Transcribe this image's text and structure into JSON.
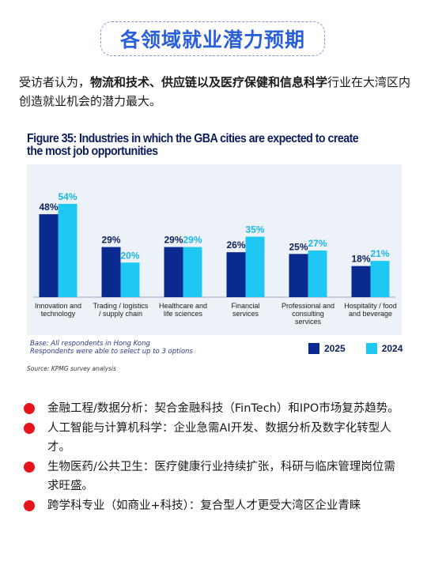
{
  "header": {
    "title": "各领域就业潜力预期"
  },
  "intro": {
    "pre": "受访者认为，",
    "bold": "物流和技术、供应链以及医疗保健和信息科学",
    "post": "行业在大湾区内创造就业机会的潜力最大。"
  },
  "figure": {
    "title": "Figure 35: Industries in which the GBA cities are expected to create the most job opportunities",
    "base_line1": "Base: All respondents in Hong Kong",
    "base_line2": "Respondents were able to select up to 3 options",
    "source": "Source: KPMG survey analysis"
  },
  "chart_data": {
    "type": "bar",
    "title": "Figure 35: Industries in which the GBA cities are expected to create the most job opportunities",
    "categories": [
      [
        "Innovation and",
        "technology"
      ],
      [
        "Trading / logistics",
        "/ supply chain"
      ],
      [
        "Healthcare and",
        "life sciences"
      ],
      [
        "Financial",
        "services"
      ],
      [
        "Professional and",
        "consulting",
        "services"
      ],
      [
        "Hospitality / food",
        "and beverage"
      ]
    ],
    "series": [
      {
        "name": "2025",
        "color": "#0b2a8f",
        "values": [
          48,
          29,
          29,
          26,
          25,
          18
        ]
      },
      {
        "name": "2024",
        "color": "#1ec8f2",
        "values": [
          54,
          20,
          29,
          35,
          27,
          21
        ]
      }
    ],
    "ylim": [
      0,
      60
    ],
    "value_suffix": "%",
    "grid": false,
    "legend": "bottom-right"
  },
  "bullets": [
    {
      "text": "金融工程/数据分析：契合金融科技（FinTech）和IPO市场复苏趋势。"
    },
    {
      "text": "人工智能与计算机科学：企业急需AI开发、数据分析及数字化转型人才。"
    },
    {
      "text": "生物医药/公共卫生：医疗健康行业持续扩张，科研与临床管理岗位需求旺盛。"
    },
    {
      "text": "跨学科专业（如商业+科技）：复合型人才更受大湾区企业青睐"
    }
  ],
  "colors": {
    "accent": "#2b5fd9",
    "bullet": "#e8141b",
    "navy": "#0b1f5c"
  }
}
